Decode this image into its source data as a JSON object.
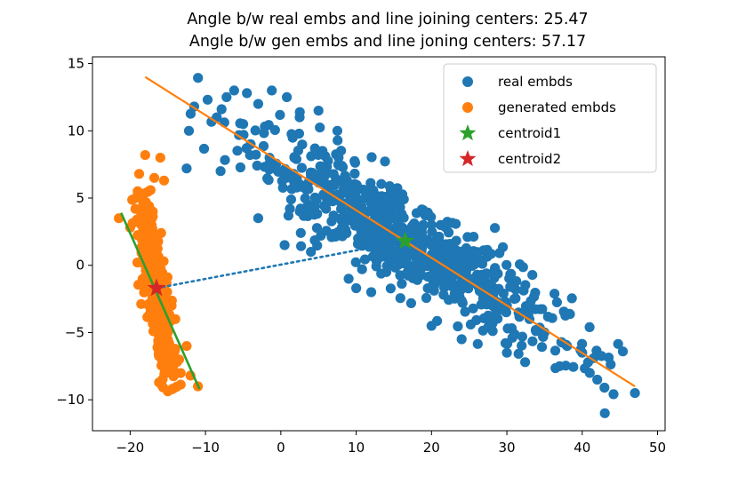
{
  "chart_data": {
    "type": "scatter",
    "title_lines": [
      "Angle b/w real embs and line joining centers: 25.47",
      "Angle b/w gen embs and line joning centers: 57.17"
    ],
    "xlabel": "",
    "ylabel": "",
    "xlim": [
      -25,
      51
    ],
    "ylim": [
      -12.3,
      15.5
    ],
    "xticks": [
      -20,
      -10,
      0,
      10,
      20,
      30,
      40,
      50
    ],
    "yticks": [
      -10,
      -5,
      0,
      5,
      10,
      15
    ],
    "grid": false,
    "legend_position": "top-right",
    "colors": {
      "real": "#1f77b4",
      "generated": "#ff7f0e",
      "centroid1": "#2ca02c",
      "centroid2": "#d62728",
      "real_fit_line": "#ff7f0e",
      "generated_fit_line": "#2ca02c",
      "center_link": "#1f77b4"
    },
    "legend": [
      {
        "label": "real embds",
        "marker": "circle",
        "color": "#1f77b4"
      },
      {
        "label": "generated embds",
        "marker": "circle",
        "color": "#ff7f0e"
      },
      {
        "label": "centroid1",
        "marker": "star",
        "color": "#2ca02c"
      },
      {
        "label": "centroid2",
        "marker": "star",
        "color": "#d62728"
      }
    ],
    "series": [
      {
        "name": "real embds",
        "kind": "scatter",
        "cloud": {
          "center": [
            16.5,
            1.8
          ],
          "direction_deg": -18.8,
          "spread_major": 11.0,
          "spread_minor": 1.6,
          "count": 700
        },
        "x": [
          -6.2,
          -4.5,
          -3.0,
          -12.2,
          -11.5,
          -8.5,
          -7.2,
          -5.0,
          -1.2,
          0.8,
          2.5,
          5.0,
          7.5,
          -12.5,
          -4.0,
          -1.5,
          0.5,
          2.0,
          6.0,
          7.0,
          -3.0,
          0.5,
          4.0,
          -8.0,
          1.0,
          6.0,
          10.0,
          12.0,
          15.0,
          20.0,
          22.0,
          25.0,
          28.0,
          30.0,
          33.0,
          35.0,
          38.0,
          40.0,
          42.0,
          43.0,
          47.0,
          10.0,
          12.0,
          20.0,
          24.0,
          30.0,
          37.0,
          41.0,
          9.0,
          14.0
        ],
        "y": [
          13.0,
          12.8,
          12.0,
          10.0,
          11.8,
          11.0,
          12.5,
          10.5,
          13.0,
          12.5,
          11.0,
          11.5,
          10.0,
          7.2,
          9.0,
          8.0,
          6.5,
          5.8,
          4.2,
          3.7,
          3.5,
          1.5,
          1.0,
          7.0,
          6.8,
          6.0,
          4.5,
          2.5,
          3.5,
          3.0,
          0.0,
          -1.0,
          -2.0,
          -3.0,
          -4.0,
          -5.0,
          -6.0,
          -6.5,
          -8.5,
          -11.0,
          -9.5,
          -1.7,
          -2.0,
          -4.5,
          -5.5,
          -6.5,
          -7.5,
          -8.0,
          -1.0,
          -0.5
        ]
      },
      {
        "name": "generated embds",
        "kind": "scatter",
        "cloud": {
          "center": [
            -16.5,
            -2.0
          ],
          "direction_deg": -73.5,
          "spread_major": 3.6,
          "spread_minor": 0.65,
          "count": 450
        },
        "x": [
          -18.0,
          -16.0,
          -18.8,
          -16.8,
          -15.5,
          -19.0,
          -17.0,
          -21.5,
          -20.0,
          -11.0,
          -12.0,
          -13.5,
          -15.0,
          -14.5,
          -18.5,
          -17.5,
          -14.0,
          -12.5
        ],
        "y": [
          8.2,
          8.0,
          6.8,
          6.5,
          6.3,
          5.5,
          4.0,
          3.5,
          2.8,
          -9.0,
          -8.2,
          -7.0,
          -5.0,
          -3.0,
          1.0,
          0.0,
          -4.0,
          -6.0
        ]
      },
      {
        "name": "real fit line",
        "kind": "line",
        "x": [
          -18,
          47
        ],
        "y": [
          14.0,
          -9.0
        ]
      },
      {
        "name": "generated fit line",
        "kind": "line",
        "x": [
          -21.2,
          -10.8
        ],
        "y": [
          3.9,
          -9.2
        ]
      },
      {
        "name": "line joining centers",
        "kind": "dotted_line",
        "x": [
          -16.5,
          16.5
        ],
        "y": [
          -1.7,
          1.8
        ]
      },
      {
        "name": "centroid1",
        "kind": "star",
        "x": [
          16.5
        ],
        "y": [
          1.8
        ]
      },
      {
        "name": "centroid2",
        "kind": "star",
        "x": [
          -16.5
        ],
        "y": [
          -1.7
        ]
      }
    ]
  }
}
